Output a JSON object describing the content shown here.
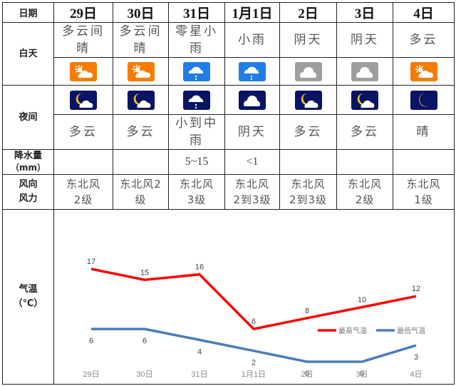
{
  "header": {
    "row_label": "日期",
    "dates": [
      "29日",
      "30日",
      "31日",
      "1月1日",
      "2日",
      "3日",
      "4日"
    ]
  },
  "day": {
    "row_label": "白天",
    "conditions": [
      {
        "line1": "多云间",
        "line2": "晴"
      },
      {
        "line1": "多云间",
        "line2": "晴"
      },
      {
        "line1": "零星小",
        "line2": "雨"
      },
      {
        "line1": "小雨",
        "line2": ""
      },
      {
        "line1": "阴天",
        "line2": ""
      },
      {
        "line1": "阴天",
        "line2": ""
      },
      {
        "line1": "多云",
        "line2": ""
      }
    ],
    "icons": [
      "sun-cloud-icon",
      "sun-cloud-icon",
      "rain-icon",
      "rain-icon",
      "overcast-icon",
      "overcast-icon",
      "sun-cloud-icon"
    ],
    "icon_colors": [
      "#f57c00",
      "#f57c00",
      "#1e7de6",
      "#1e7de6",
      "#9e9e9e",
      "#9e9e9e",
      "#f57c00"
    ]
  },
  "night": {
    "row_label": "夜间",
    "icons": [
      "moon-cloud-icon",
      "moon-cloud-icon",
      "rain-icon",
      "cloud-icon",
      "moon-cloud-icon",
      "moon-cloud-icon",
      "moon-icon"
    ],
    "icon_color": "#0a1464",
    "conditions": [
      {
        "line1": "多云",
        "line2": ""
      },
      {
        "line1": "多云",
        "line2": ""
      },
      {
        "line1": "小到中",
        "line2": "雨"
      },
      {
        "line1": "阴天",
        "line2": ""
      },
      {
        "line1": "多云",
        "line2": ""
      },
      {
        "line1": "多云",
        "line2": ""
      },
      {
        "line1": "晴",
        "line2": ""
      }
    ]
  },
  "precip": {
    "row_label_1": "降水量",
    "row_label_2": "（mm）",
    "values": [
      "",
      "",
      "5~15",
      "<1",
      "",
      "",
      ""
    ]
  },
  "wind": {
    "row_label_1": "风向",
    "row_label_2": "风力",
    "values": [
      {
        "line1": "东北风",
        "line2": "2级"
      },
      {
        "line1": "东北风2",
        "line2": "级"
      },
      {
        "line1": "东北风",
        "line2": "3级"
      },
      {
        "line1": "东北风",
        "line2": "2到3级"
      },
      {
        "line1": "东北风",
        "line2": "2到3级"
      },
      {
        "line1": "东北风",
        "line2": "2级"
      },
      {
        "line1": "东北风",
        "line2": "1级"
      }
    ]
  },
  "temp": {
    "row_label_1": "气温",
    "row_label_2": "（℃）"
  },
  "chart_data": {
    "type": "line",
    "title": "",
    "xlabel": "",
    "ylabel": "气温（℃）",
    "categories": [
      "29日",
      "30日",
      "31日",
      "1月1日",
      "2日",
      "3日",
      "4日"
    ],
    "series": [
      {
        "name": "最高气温",
        "color": "#ff0000",
        "values": [
          17,
          15,
          16,
          6,
          8,
          10,
          12
        ]
      },
      {
        "name": "最低气温",
        "color": "#4a7ebb",
        "values": [
          6,
          6,
          4,
          2,
          0,
          0,
          3
        ]
      }
    ],
    "ylim": [
      0,
      18
    ],
    "grid": false,
    "legend_position": "lower-right-inside",
    "data_labels": true
  }
}
